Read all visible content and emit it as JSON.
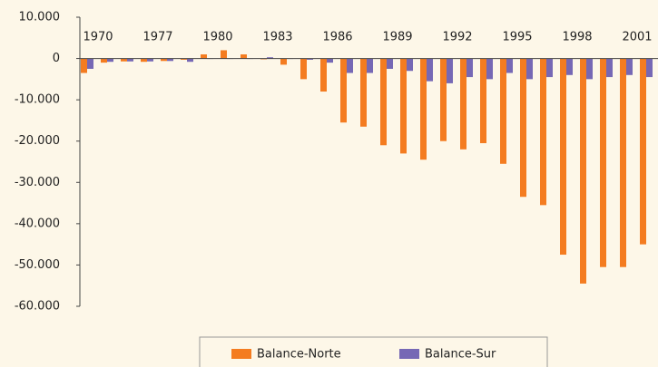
{
  "chart_data": {
    "type": "bar",
    "categories": [
      "1970",
      null,
      null,
      "1977",
      null,
      null,
      "1980",
      null,
      null,
      "1983",
      null,
      null,
      "1986",
      null,
      null,
      "1989",
      null,
      null,
      "1992",
      null,
      null,
      "1995",
      null,
      null,
      "1998",
      null,
      null,
      "2001",
      null
    ],
    "series": [
      {
        "name": "Balance-Norte",
        "color": "#f47c20",
        "values": [
          -3500,
          -1000,
          -700,
          -800,
          -600,
          -300,
          1000,
          2000,
          1000,
          -200,
          -1500,
          -5000,
          -8000,
          -15500,
          -16500,
          -21000,
          -23000,
          -24500,
          -20000,
          -22000,
          -20500,
          -25500,
          -33500,
          -35500,
          -47500,
          -54500,
          -50500,
          -50500,
          -45000
        ]
      },
      {
        "name": "Balance-Sur",
        "color": "#7668b5",
        "values": [
          -2500,
          -800,
          -700,
          -700,
          -600,
          -800,
          0,
          0,
          0,
          300,
          0,
          -300,
          -1000,
          -3500,
          -3500,
          -2500,
          -3000,
          -5500,
          -6000,
          -4500,
          -5000,
          -3500,
          -5000,
          -4500,
          -4000,
          -5000,
          -4500,
          -4000,
          -4500
        ]
      }
    ],
    "ylim": [
      -60000,
      10000
    ],
    "yticks": [
      {
        "value": 10000,
        "label": "10.000"
      },
      0,
      {
        "value": -10000,
        "label": "-10.000"
      },
      {
        "value": -20000,
        "label": "-20.000"
      },
      {
        "value": -30000,
        "label": "-30.000"
      },
      {
        "value": -40000,
        "label": "-40.000"
      },
      {
        "value": -50000,
        "label": "-50.000"
      },
      {
        "value": -60000,
        "label": "-60.000"
      }
    ]
  }
}
